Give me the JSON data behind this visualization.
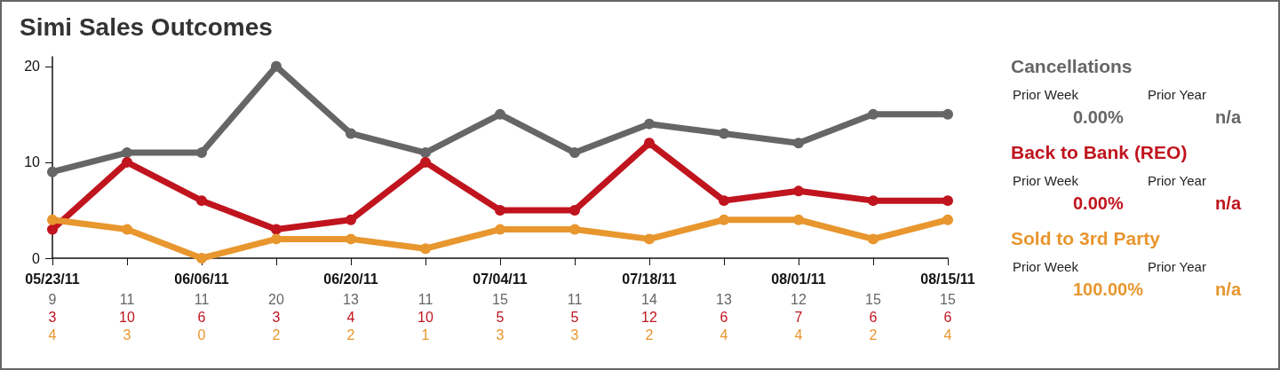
{
  "chart_data": {
    "type": "line",
    "title": "Simi Sales Outcomes",
    "categories": [
      "05/23/11",
      null,
      "06/06/11",
      null,
      "06/20/11",
      null,
      "07/04/11",
      null,
      "07/18/11",
      null,
      "08/01/11",
      null,
      "08/15/11"
    ],
    "series": [
      {
        "name": "Cancellations",
        "color": "#666666",
        "values": [
          9,
          11,
          11,
          20,
          13,
          11,
          15,
          11,
          14,
          13,
          12,
          15,
          15
        ]
      },
      {
        "name": "Back to Bank (REO)",
        "color": "#c0141e",
        "values": [
          3,
          10,
          6,
          3,
          4,
          10,
          5,
          5,
          12,
          6,
          7,
          6,
          6
        ]
      },
      {
        "name": "Sold to 3rd Party",
        "color": "#e8962e",
        "values": [
          4,
          3,
          0,
          2,
          2,
          1,
          3,
          3,
          2,
          4,
          4,
          2,
          4
        ]
      }
    ],
    "annotations": [
      "Prior Week",
      "0.00%",
      "Prior Year",
      "n/a",
      "Prior Week",
      "0.00%",
      "Prior Year",
      "n/a",
      "Prior Week",
      "100.00%",
      "Prior Year",
      "n/a"
    ],
    "ylim": [
      0,
      21
    ],
    "yticks": [
      0,
      10,
      20
    ],
    "grid": false,
    "legend": "right",
    "marker": "circle",
    "line_style": "solid",
    "data_labels": true
  }
}
